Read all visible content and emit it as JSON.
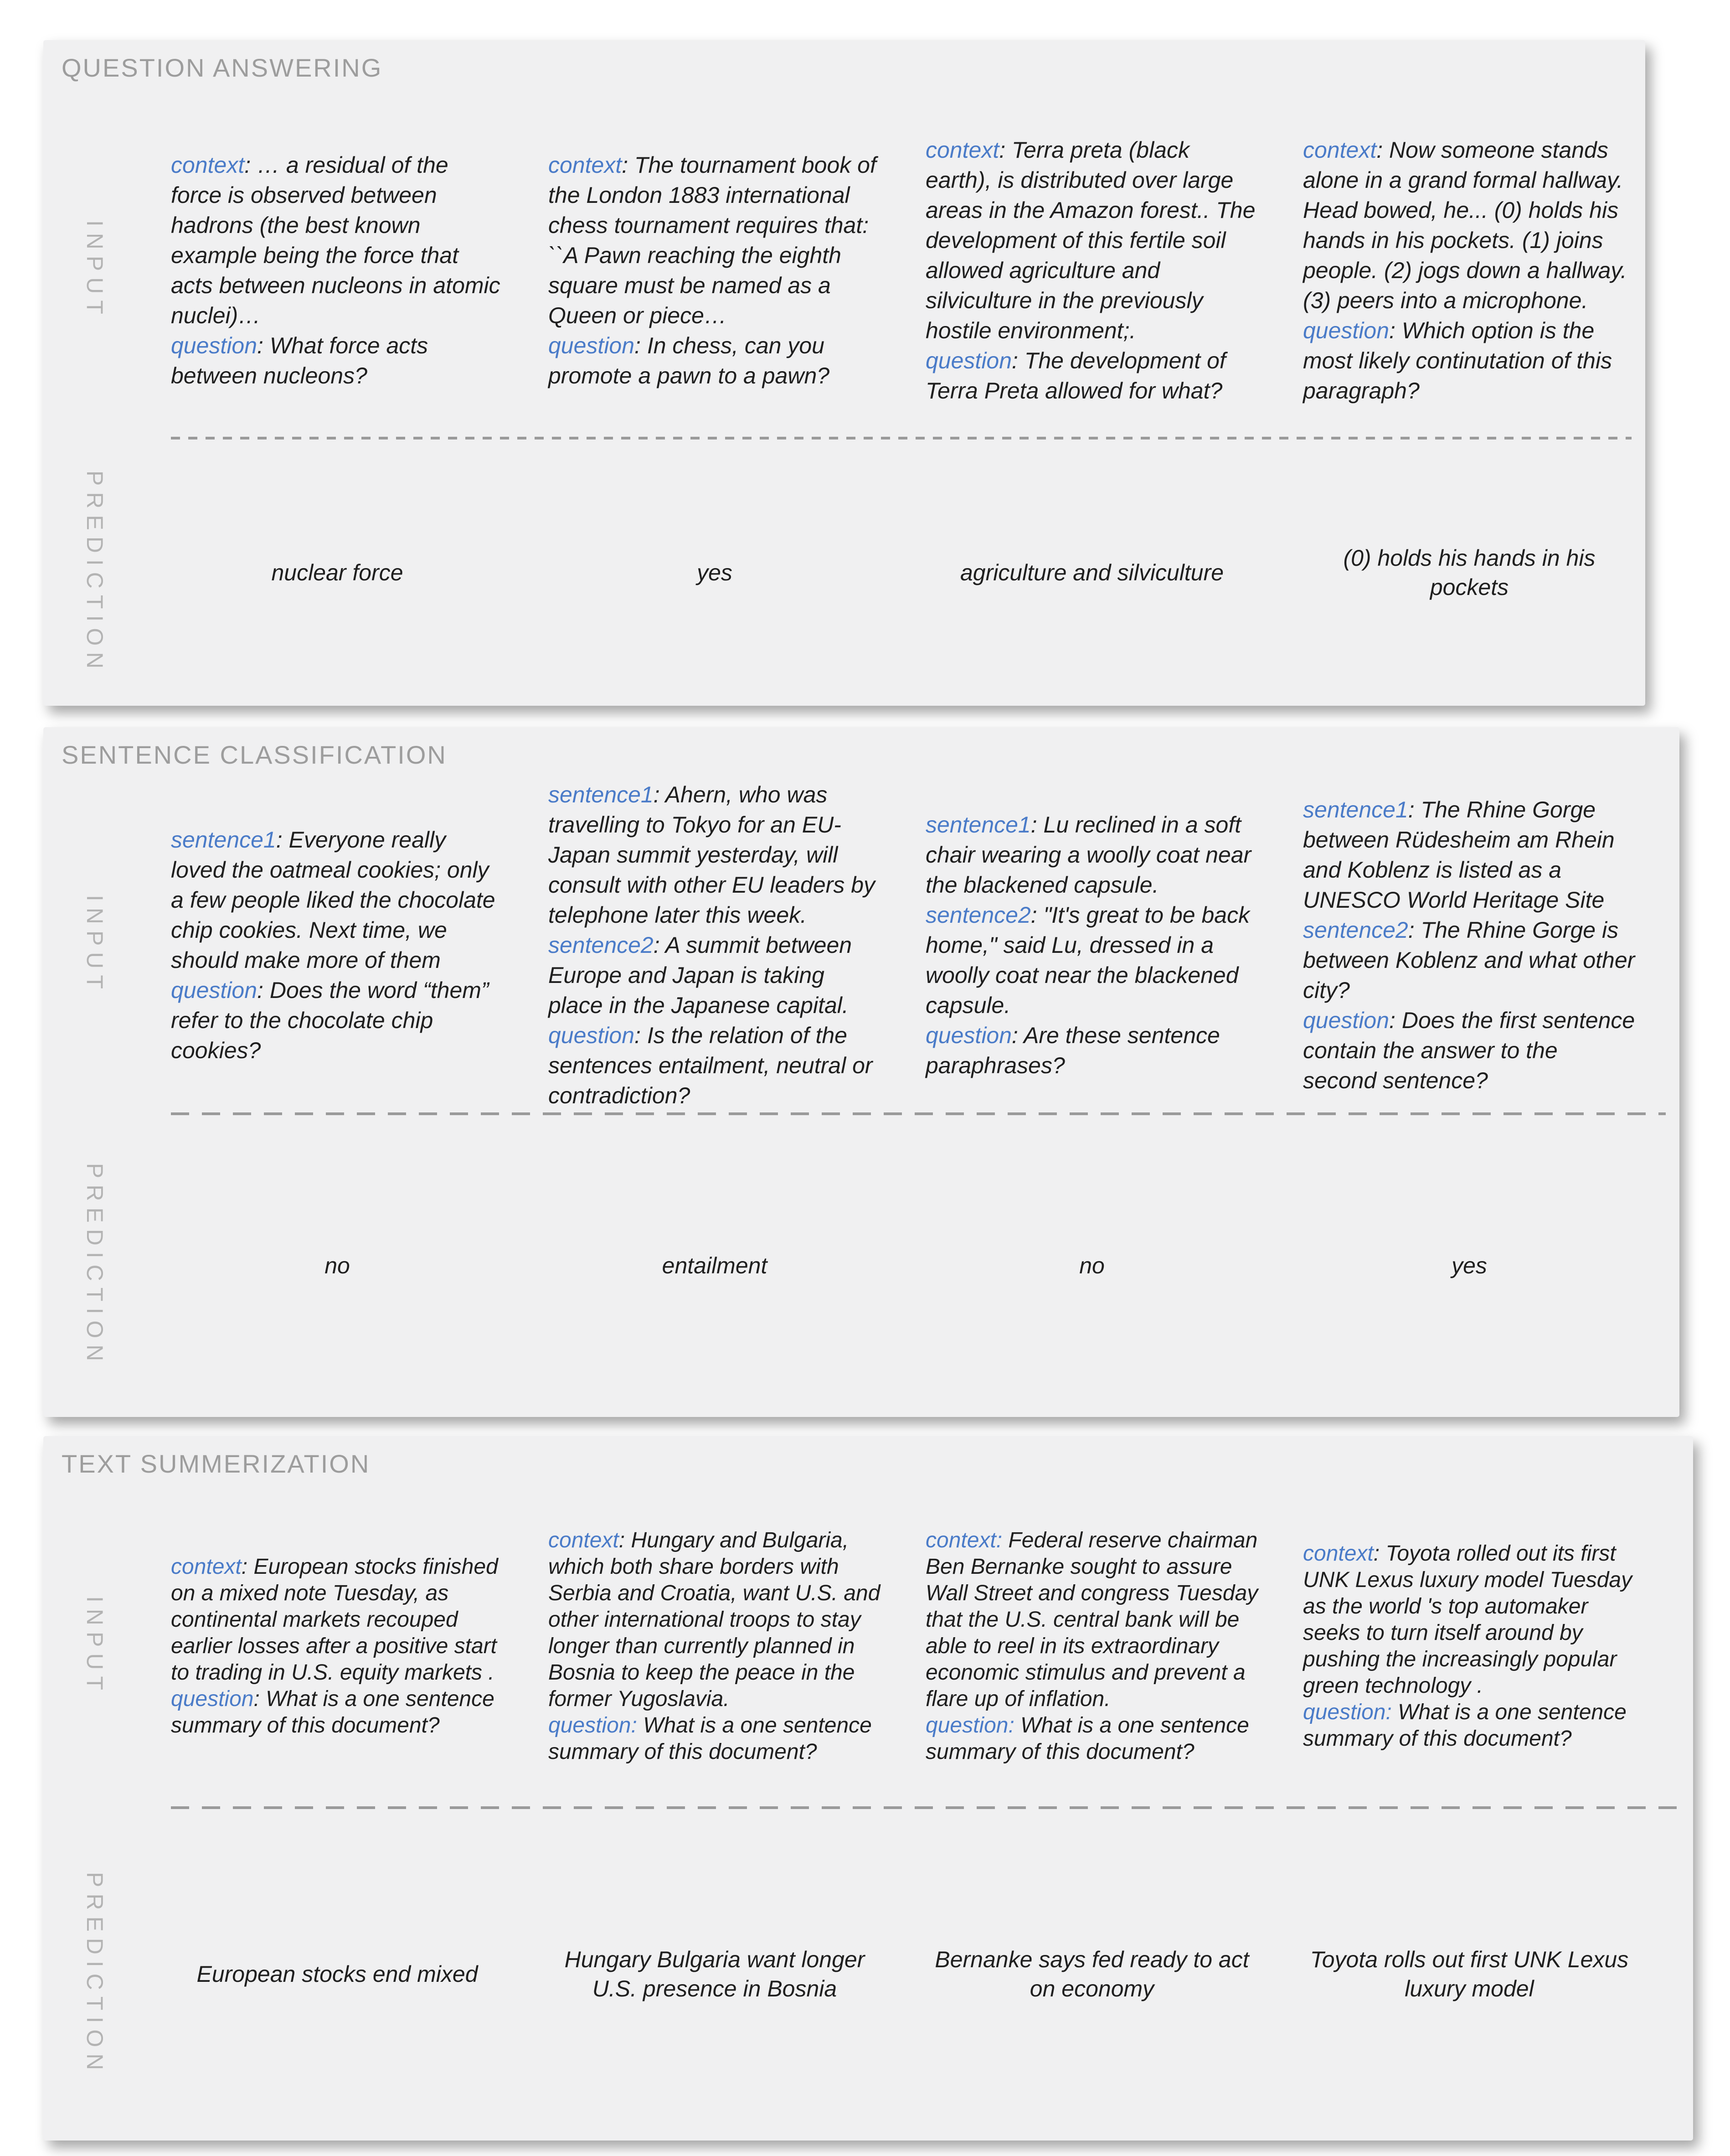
{
  "colors": {
    "page_background": "#ffffff",
    "card_background": "#f0f0f1",
    "keyword_blue": "#4a7bc8",
    "body_text": "#1f1f1f",
    "title_gray": "#9d9d9d",
    "row_label_gray": "#b3b3b3",
    "divider_gray": "#9a9a9a"
  },
  "sections": [
    {
      "title": "QUESTION ANSWERING",
      "input_label": "INPUT",
      "prediction_label": "PREDICTION",
      "examples": [
        {
          "input": [
            {
              "label": "context",
              "text": ": … a residual of the force is observed between hadrons (the best known example being the force that acts between nucleons in atomic nuclei)…"
            },
            {
              "label": "question",
              "text": ": What force acts between nucleons?"
            }
          ],
          "prediction": "nuclear force"
        },
        {
          "input": [
            {
              "label": "context",
              "text": ": The tournament book of the London 1883 international chess tournament requires that: ``A Pawn reaching the eighth square must be named as a Queen or piece…"
            },
            {
              "label": "question",
              "text": ": In chess, can you promote a pawn to a pawn?"
            }
          ],
          "prediction": "yes"
        },
        {
          "input": [
            {
              "label": "context",
              "text": ": Terra preta (black earth), is distributed over large areas in the Amazon forest.. The development of this fertile soil allowed agriculture and silviculture in the previously hostile environment;."
            },
            {
              "label": "question",
              "text": ": The development of Terra Preta allowed for what?"
            }
          ],
          "prediction": "agriculture and silviculture"
        },
        {
          "input": [
            {
              "label": "context",
              "text": ": Now someone stands alone in a grand formal hallway. Head bowed, he... (0) holds his hands in his pockets. (1) joins people. (2) jogs down a hallway. (3) peers into a microphone."
            },
            {
              "label": "question",
              "text": ": Which option is the most likely continutation of this paragraph?"
            }
          ],
          "prediction": "(0) holds his hands in his pockets"
        }
      ]
    },
    {
      "title": "SENTENCE CLASSIFICATION",
      "input_label": "INPUT",
      "prediction_label": "PREDICTION",
      "examples": [
        {
          "input": [
            {
              "label": "sentence1",
              "text": ": Everyone really loved the oatmeal cookies; only a few people liked the chocolate chip cookies. Next time, we should make more of them"
            },
            {
              "label": "question",
              "text": ": Does the word “them” refer to the chocolate chip cookies?"
            }
          ],
          "prediction": "no"
        },
        {
          "input": [
            {
              "label": "sentence1",
              "text": ": Ahern, who was travelling to Tokyo for an EU-Japan summit yesterday, will consult with other EU leaders by telephone later this week."
            },
            {
              "label": "sentence2",
              "text": ": A summit between Europe and Japan is taking place in the Japanese capital."
            },
            {
              "label": "question",
              "text": ": Is the relation of the sentences entailment, neutral or contradiction?"
            }
          ],
          "prediction": "entailment"
        },
        {
          "input": [
            {
              "label": "sentence1",
              "text": ": Lu reclined in a soft chair wearing a woolly coat near the blackened capsule."
            },
            {
              "label": "sentence2",
              "text": ": \"It's great to be back home,\" said Lu, dressed in a woolly coat near the blackened capsule."
            },
            {
              "label": "question",
              "text": ": Are these sentence paraphrases?"
            }
          ],
          "prediction": "no"
        },
        {
          "input": [
            {
              "label": "sentence1",
              "text": ": The Rhine Gorge between Rüdesheim am Rhein and Koblenz is listed as a UNESCO World Heritage Site"
            },
            {
              "label": "sentence2",
              "text": ": The Rhine Gorge is between Koblenz and what other city?"
            },
            {
              "label": "question",
              "text": ": Does the first sentence contain the answer to the second sentence?"
            }
          ],
          "prediction": "yes"
        }
      ]
    },
    {
      "title": "TEXT SUMMERIZATION",
      "input_label": "INPUT",
      "prediction_label": "PREDICTION",
      "examples": [
        {
          "input": [
            {
              "label": "context",
              "text": ": European stocks finished on a mixed note Tuesday, as continental markets recouped earlier losses after a positive start to trading in U.S. equity markets ."
            },
            {
              "label": "question",
              "text": ": What is a one sentence summary of this document?"
            }
          ],
          "prediction": "European stocks end mixed"
        },
        {
          "input": [
            {
              "label": "context",
              "text": ": Hungary and Bulgaria, which both share borders with Serbia and Croatia, want U.S. and other international troops to stay longer than currently planned in Bosnia to keep the peace in the former Yugoslavia."
            },
            {
              "label": "question:",
              "text": " What is a one sentence summary of this document?"
            }
          ],
          "prediction": "Hungary Bulgaria want longer U.S. presence in Bosnia"
        },
        {
          "input": [
            {
              "label": "context:",
              "text": " Federal reserve chairman Ben Bernanke sought to assure Wall Street and congress Tuesday that the U.S. central bank will be able to reel in its extraordinary economic stimulus and prevent a flare up of inflation."
            },
            {
              "label": "question:",
              "text": " What is a one sentence summary of this document?"
            }
          ],
          "prediction": "Bernanke says fed ready to act on economy"
        },
        {
          "input": [
            {
              "label": "context",
              "text": ": Toyota rolled out its first UNK Lexus luxury model Tuesday  as the world 's top automaker seeks to turn itself around by pushing the increasingly popular green technology ."
            },
            {
              "label": "question:",
              "text": " What is a one sentence summary of this document?"
            }
          ],
          "prediction": "Toyota rolls out first UNK Lexus luxury model"
        }
      ]
    }
  ]
}
